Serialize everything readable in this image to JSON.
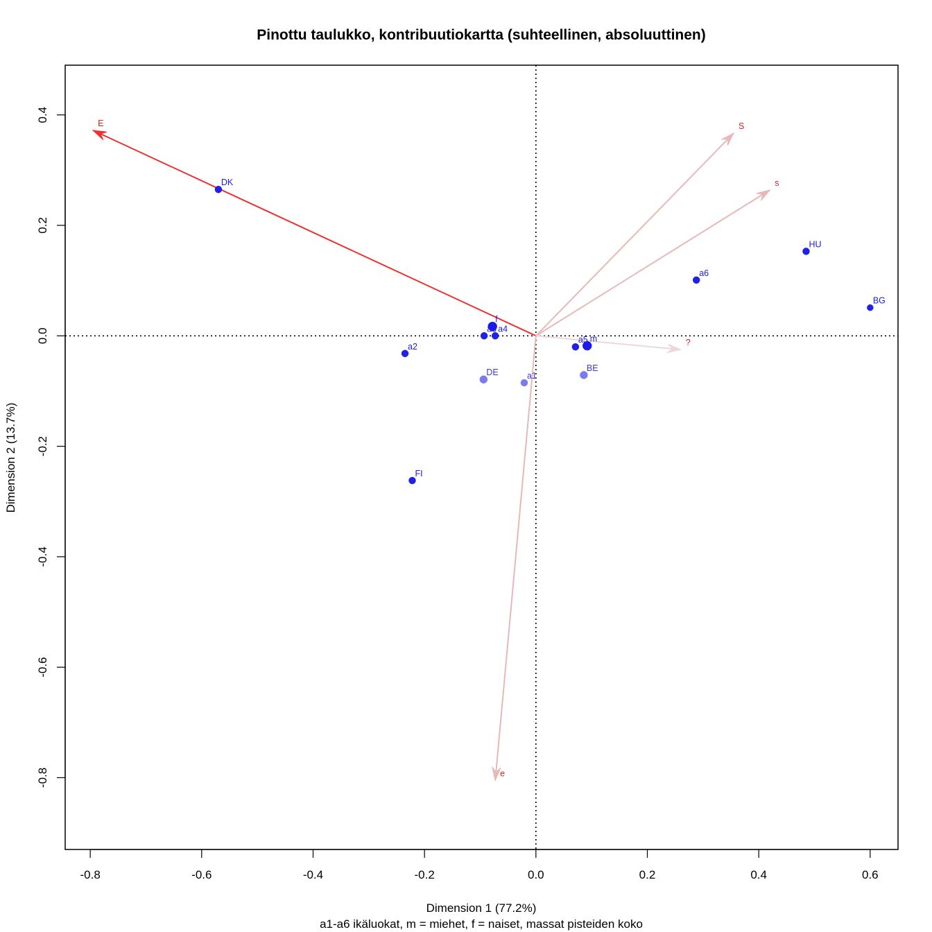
{
  "chart_data": {
    "type": "scatter",
    "title": "Pinottu taulukko, kontribuutiokartta (suhteellinen, absoluuttinen)",
    "xlabel": "Dimension 1 (77.2%)",
    "ylabel": "Dimension 2 (13.7%)",
    "subtitle": "a1-a6 ikäluokat, m = miehet, f = naiset, massat pisteiden koko",
    "xlim": [
      -0.845,
      0.65
    ],
    "ylim": [
      -0.93,
      0.49
    ],
    "x_ticks": [
      -0.8,
      -0.6,
      -0.4,
      -0.2,
      0.0,
      0.2,
      0.4,
      0.6
    ],
    "x_tick_labels": [
      "-0.8",
      "-0.6",
      "-0.4",
      "-0.2",
      "0.0",
      "0.2",
      "0.4",
      "0.6"
    ],
    "y_ticks": [
      -0.8,
      -0.6,
      -0.4,
      -0.2,
      0.0,
      0.2,
      0.4
    ],
    "y_tick_labels": [
      "-0.8",
      "-0.6",
      "-0.4",
      "-0.2",
      "0.0",
      "0.2",
      "0.4"
    ],
    "reference_lines": {
      "x": 0,
      "y": 0,
      "style": "dotted"
    },
    "row_points": [
      {
        "label": "DK",
        "x": -0.57,
        "y": 0.265,
        "color": "#2020e6",
        "size": 5
      },
      {
        "label": "HU",
        "x": 0.485,
        "y": 0.153,
        "color": "#2020e6",
        "size": 5
      },
      {
        "label": "a6",
        "x": 0.288,
        "y": 0.101,
        "color": "#2020e6",
        "size": 5
      },
      {
        "label": "BG",
        "x": 0.6,
        "y": 0.051,
        "color": "#2020e6",
        "size": 4.5
      },
      {
        "label": "f",
        "x": -0.078,
        "y": 0.017,
        "color": "#1a1aee",
        "size": 6.5
      },
      {
        "label": "a3",
        "x": -0.093,
        "y": 0.0,
        "color": "#2020e6",
        "size": 5
      },
      {
        "label": "a4",
        "x": -0.073,
        "y": 0.0,
        "color": "#2020e6",
        "size": 5
      },
      {
        "label": "a5",
        "x": 0.071,
        "y": -0.02,
        "color": "#2020e6",
        "size": 5
      },
      {
        "label": "m",
        "x": 0.092,
        "y": -0.018,
        "color": "#1a1aee",
        "size": 6.5
      },
      {
        "label": "a2",
        "x": -0.235,
        "y": -0.032,
        "color": "#2020e6",
        "size": 5
      },
      {
        "label": "DE",
        "x": -0.094,
        "y": -0.079,
        "color": "#7b7bee",
        "size": 5.5
      },
      {
        "label": "a1",
        "x": -0.021,
        "y": -0.085,
        "color": "#7b7bee",
        "size": 5
      },
      {
        "label": "BE",
        "x": 0.086,
        "y": -0.071,
        "color": "#7b7bee",
        "size": 5.5
      },
      {
        "label": "FI",
        "x": -0.222,
        "y": -0.262,
        "color": "#2020e6",
        "size": 5
      }
    ],
    "column_arrows": [
      {
        "label": "E",
        "x": -0.795,
        "y": 0.372,
        "color": "#ee3030",
        "width": 2
      },
      {
        "label": "S",
        "x": 0.355,
        "y": 0.367,
        "color": "#e8b8b8",
        "width": 2
      },
      {
        "label": "s",
        "x": 0.42,
        "y": 0.264,
        "color": "#e8b8b8",
        "width": 2
      },
      {
        "label": "?",
        "x": 0.26,
        "y": -0.025,
        "color": "#ecd8d8",
        "width": 2
      },
      {
        "label": "e",
        "x": -0.073,
        "y": -0.805,
        "color": "#e8b8b8",
        "width": 2
      }
    ]
  }
}
